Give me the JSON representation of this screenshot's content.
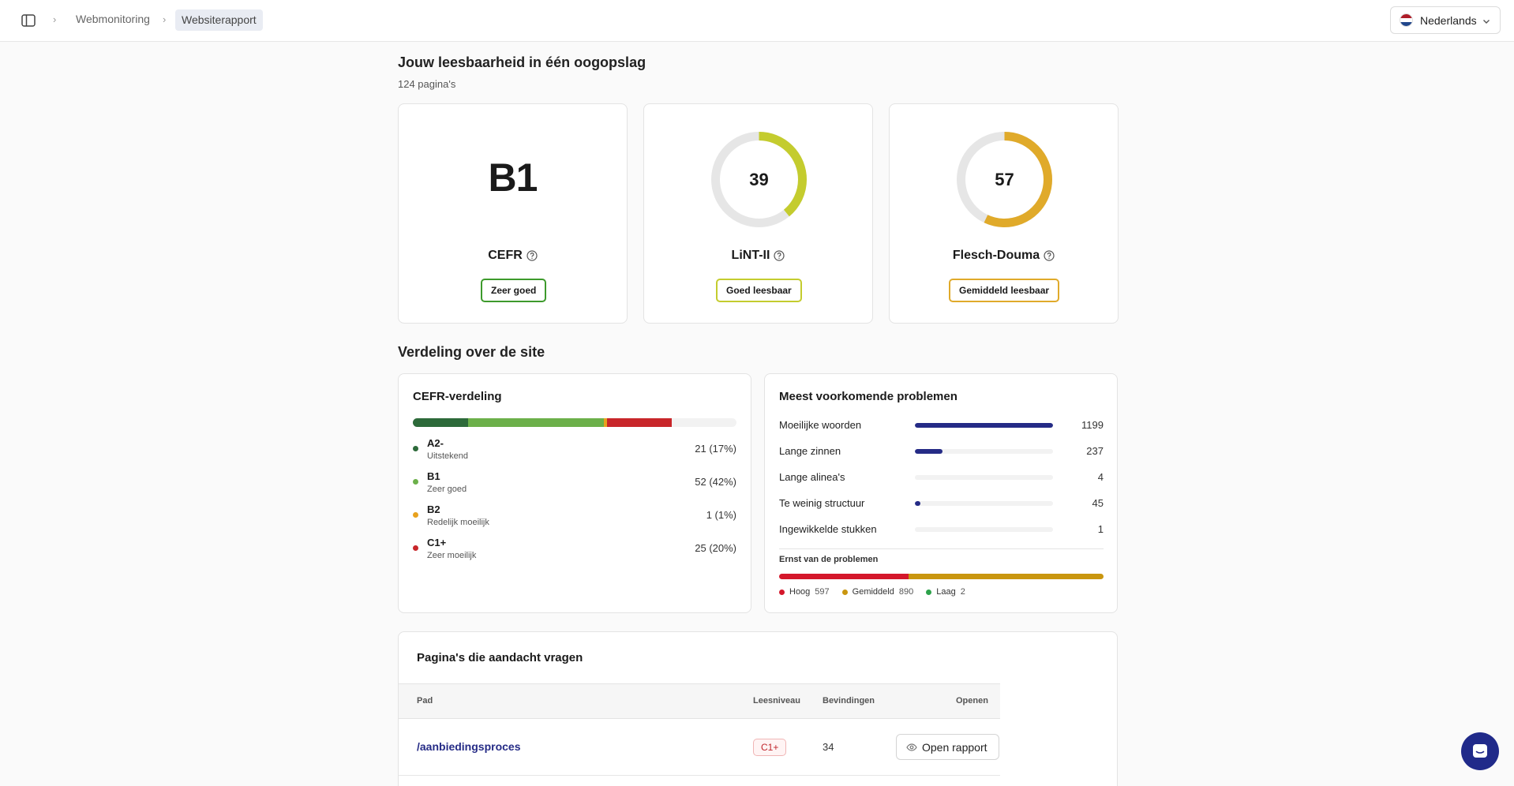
{
  "breadcrumb": {
    "items": [
      "Webmonitoring",
      "Websiterapport"
    ]
  },
  "language": {
    "label": "Nederlands",
    "flag_colors": [
      "#ae1c28",
      "#ffffff",
      "#21468b"
    ]
  },
  "summary": {
    "title": "Jouw leesbaarheid in één oogopslag",
    "pages": "124 pagina's"
  },
  "scores": {
    "cefr": {
      "value": "B1",
      "name": "CEFR",
      "verdict": "Zeer goed",
      "color": "#3d9a2c"
    },
    "lint": {
      "value": "39",
      "name": "LiNT-II",
      "verdict": "Goed leesbaar",
      "color": "#c4cc2e",
      "level": 0.39
    },
    "flesch": {
      "value": "57",
      "name": "Flesch-Douma",
      "verdict": "Gemiddeld leesbaar",
      "color": "#e0aa2a",
      "level": 0.57
    }
  },
  "distribution": {
    "title": "Verdeling over de site",
    "cefr": {
      "title": "CEFR-verdeling",
      "levels": [
        {
          "name": "A2-",
          "desc": "Uitstekend",
          "count": "21 (17%)",
          "fraction": 0.17,
          "color": "#2d6a3a"
        },
        {
          "name": "B1",
          "desc": "Zeer goed",
          "count": "52 (42%)",
          "fraction": 0.42,
          "color": "#6cb04a"
        },
        {
          "name": "B2",
          "desc": "Redelijk moeilijk",
          "count": "1 (1%)",
          "fraction": 0.01,
          "color": "#e8a21e"
        },
        {
          "name": "C1+",
          "desc": "Zeer moeilijk",
          "count": "25 (20%)",
          "fraction": 0.2,
          "color": "#c8262a"
        }
      ]
    },
    "problems": {
      "title": "Meest voorkomende problemen",
      "items": [
        {
          "label": "Moeilijke woorden",
          "count": "1199",
          "level": 1.0
        },
        {
          "label": "Lange zinnen",
          "count": "237",
          "level": 0.2
        },
        {
          "label": "Lange alinea's",
          "count": "4",
          "level": 0.0
        },
        {
          "label": "Te weinig structuur",
          "count": "45",
          "level": 0.04
        },
        {
          "label": "Ingewikkelde stukken",
          "count": "1",
          "level": 0.0
        }
      ],
      "severity": {
        "title": "Ernst van de problemen",
        "levels": [
          {
            "label": "Hoog",
            "count": "597",
            "fraction": 0.4,
            "color": "#d4172b"
          },
          {
            "label": "Gemiddeld",
            "count": "890",
            "fraction": 0.6,
            "color": "#c9960f"
          },
          {
            "label": "Laag",
            "count": "2",
            "fraction": 0.0,
            "color": "#2da24b"
          }
        ]
      }
    }
  },
  "attention": {
    "title": "Pagina's die aandacht vragen",
    "columns": [
      "Pad",
      "Leesniveau",
      "Bevindingen",
      "Openen"
    ],
    "rows": [
      {
        "path": "/aanbiedingsproces",
        "level": "C1+",
        "findings": "34",
        "action": "Open rapport"
      }
    ]
  }
}
